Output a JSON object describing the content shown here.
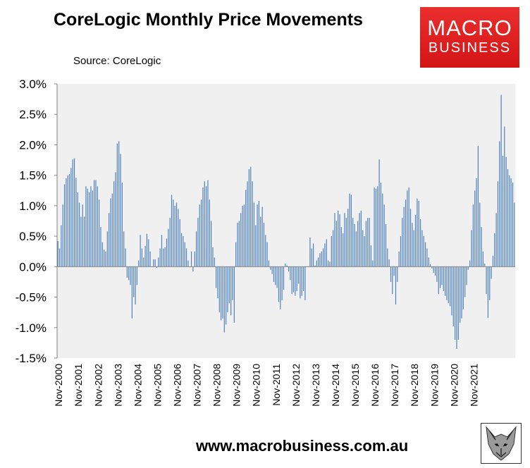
{
  "header": {
    "title": "CoreLogic Monthly Price Movements",
    "source": "Source: CoreLogic"
  },
  "logo": {
    "line1": "MACRO",
    "line2": "BUSINESS"
  },
  "footer": {
    "url": "www.macrobusiness.com.au"
  },
  "chart_data": {
    "type": "bar",
    "title": "CoreLogic Monthly Price Movements",
    "xlabel": "",
    "ylabel": "",
    "ylim": [
      -1.5,
      3.0
    ],
    "y_ticks": [
      "3.0%",
      "2.5%",
      "2.0%",
      "1.5%",
      "1.0%",
      "0.5%",
      "0.0%",
      "-0.5%",
      "-1.0%",
      "-1.5%"
    ],
    "y_tick_values": [
      3.0,
      2.5,
      2.0,
      1.5,
      1.0,
      0.5,
      0.0,
      -0.5,
      -1.0,
      -1.5
    ],
    "x_ticks": [
      "Nov-2000",
      "Nov-2001",
      "Nov-2002",
      "Nov-2003",
      "Nov-2004",
      "Nov-2005",
      "Nov-2006",
      "Nov-2007",
      "Nov-2008",
      "Nov-2009",
      "Nov-2010",
      "Nov-2011",
      "Nov-2012",
      "Nov-2013",
      "Nov-2014",
      "Nov-2015",
      "Nov-2016",
      "Nov-2017",
      "Nov-2018",
      "Nov-2019",
      "Nov-2020",
      "Nov-2021"
    ],
    "grid": false,
    "legend": "none",
    "bar_color": "#4f81bd",
    "plot_background": "#f0f0f0",
    "start": "Nov-2000",
    "frequency": "monthly",
    "unit": "%",
    "values": [
      0.42,
      0.3,
      0.68,
      1.02,
      1.35,
      1.45,
      1.5,
      1.52,
      1.62,
      1.76,
      1.78,
      1.46,
      1.22,
      1.05,
      0.82,
      1.02,
      0.82,
      1.32,
      1.28,
      1.22,
      1.32,
      1.25,
      1.42,
      1.42,
      1.32,
      1.1,
      0.65,
      0.4,
      0.28,
      0.25,
      0.58,
      0.88,
      1.12,
      1.2,
      1.4,
      1.55,
      2.02,
      2.06,
      1.85,
      1.38,
      0.58,
      0.3,
      -0.18,
      -0.22,
      -0.3,
      -0.85,
      -0.5,
      -0.62,
      -0.3,
      0.1,
      0.52,
      0.3,
      0.15,
      0.34,
      0.54,
      0.45,
      0.25,
      0.0,
      0.12,
      0.12,
      -0.02,
      0.15,
      0.3,
      0.52,
      0.3,
      0.32,
      0.46,
      0.62,
      0.8,
      1.18,
      1.1,
      1.0,
      1.05,
      0.95,
      0.78,
      0.55,
      0.5,
      0.4,
      0.3,
      0.1,
      0.0,
      0.25,
      -0.08,
      0.25,
      0.58,
      0.8,
      1.02,
      1.1,
      1.3,
      1.4,
      1.32,
      1.42,
      1.1,
      0.75,
      0.32,
      0.15,
      -0.35,
      -0.52,
      -0.75,
      -0.88,
      -0.85,
      -1.08,
      -0.95,
      -0.75,
      -0.6,
      -0.8,
      -0.55,
      -0.92,
      0.4,
      0.72,
      0.75,
      0.88,
      1.0,
      1.02,
      1.26,
      1.4,
      1.6,
      1.64,
      1.4,
      1.05,
      0.68,
      1.02,
      1.08,
      0.82,
      0.98,
      0.72,
      0.52,
      0.4,
      0.1,
      -0.05,
      -0.12,
      -0.25,
      -0.3,
      -0.35,
      -0.58,
      -0.7,
      -0.55,
      -0.38,
      0.05,
      0.02,
      -0.08,
      -0.22,
      -0.45,
      -0.42,
      -0.48,
      -0.4,
      -0.28,
      -0.52,
      -0.48,
      -0.4,
      -0.55,
      0.0,
      0.0,
      0.48,
      0.3,
      0.38,
      0.02,
      0.1,
      0.15,
      0.22,
      0.25,
      0.3,
      0.38,
      0.45,
      0.1,
      0.08,
      0.5,
      0.6,
      0.88,
      0.75,
      0.92,
      0.86,
      0.65,
      0.55,
      0.88,
      0.8,
      0.95,
      1.2,
      1.18,
      0.8,
      0.7,
      0.58,
      0.75,
      0.88,
      0.92,
      0.6,
      0.5,
      0.75,
      0.8,
      0.8,
      0.35,
      0.1,
      1.3,
      1.28,
      1.32,
      1.76,
      1.38,
      1.2,
      1.02,
      0.7,
      0.3,
      0.12,
      -0.25,
      -0.45,
      -0.15,
      -0.62,
      -0.25,
      0.25,
      0.5,
      0.8,
      0.98,
      1.1,
      1.25,
      1.3,
      0.95,
      0.72,
      0.6,
      0.85,
      1.12,
      1.08,
      0.78,
      0.6,
      0.5,
      0.4,
      0.3,
      0.15,
      0.04,
      -0.03,
      -0.1,
      -0.15,
      -0.25,
      -0.45,
      -0.35,
      -0.3,
      -0.4,
      -0.48,
      -0.55,
      -0.6,
      -0.65,
      -0.8,
      -0.98,
      -1.2,
      -1.35,
      -1.2,
      -0.92,
      -0.85,
      -0.7,
      -0.5,
      -0.3,
      -0.05,
      0.1,
      0.6,
      1.02,
      1.25,
      1.45,
      1.98,
      1.05,
      0.65,
      0.25,
      0.05,
      -0.45,
      -0.84,
      -0.55,
      -0.2,
      0.18,
      0.55,
      0.88,
      1.4,
      2.06,
      2.82,
      1.82,
      2.3,
      1.8,
      1.6,
      1.5,
      1.45,
      1.38,
      1.05
    ]
  }
}
